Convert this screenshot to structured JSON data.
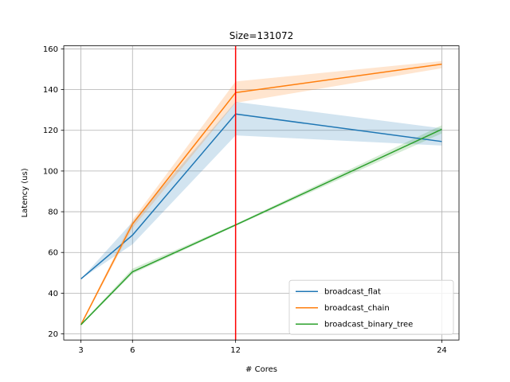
{
  "chart_data": {
    "type": "line",
    "title": "Size=131072",
    "xlabel": "# Cores",
    "ylabel": "Latency (us)",
    "x": [
      3,
      6,
      12,
      24
    ],
    "xticks": [
      3,
      6,
      12,
      24
    ],
    "xticklabels": [
      "3",
      "6",
      "12",
      "24"
    ],
    "xlim": [
      2.0,
      25.0
    ],
    "yticks": [
      20,
      40,
      60,
      80,
      100,
      120,
      140,
      160
    ],
    "yticklabels": [
      "20",
      "40",
      "60",
      "80",
      "100",
      "120",
      "140",
      "160"
    ],
    "ylim": [
      17,
      161.5
    ],
    "grid": true,
    "legend_position": "lower right",
    "vline": {
      "x": 12,
      "color": "#ff0000"
    },
    "series": [
      {
        "name": "broadcast_flat",
        "color": "#1f77b4",
        "values": [
          47,
          68.5,
          128,
          114.5
        ],
        "lower": [
          47,
          64,
          117.5,
          112.5
        ],
        "upper": [
          47,
          75,
          134,
          121
        ]
      },
      {
        "name": "broadcast_chain",
        "color": "#ff7f0e",
        "values": [
          24.5,
          74,
          138.5,
          152.5
        ],
        "lower": [
          24,
          72,
          133.5,
          150.5
        ],
        "upper": [
          25,
          76,
          144,
          154
        ]
      },
      {
        "name": "broadcast_binary_tree",
        "color": "#2ca02c",
        "values": [
          24.5,
          50.5,
          73.5,
          120.5
        ],
        "lower": [
          24,
          49.5,
          73,
          118.5
        ],
        "upper": [
          25,
          52,
          74,
          122.5
        ]
      }
    ]
  }
}
